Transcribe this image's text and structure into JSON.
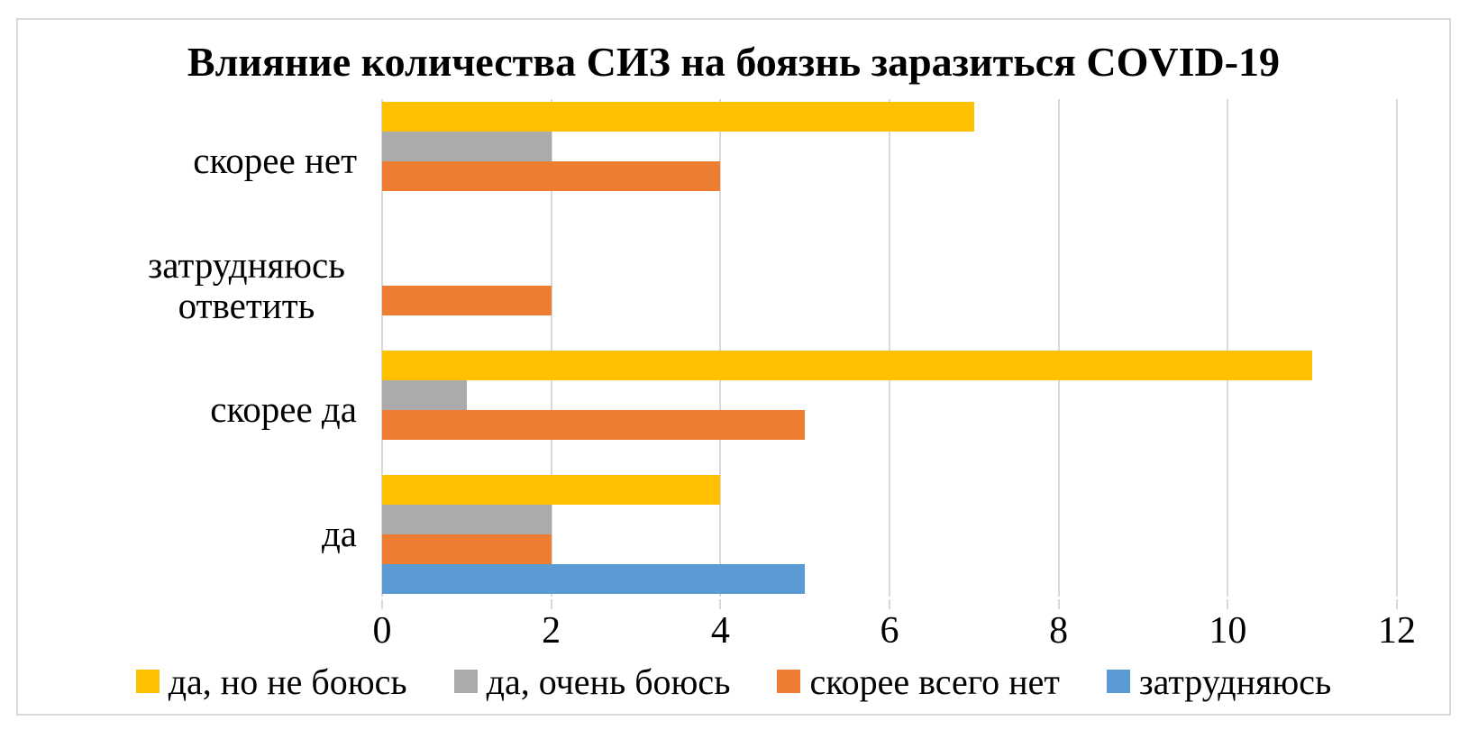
{
  "title": "Влияние количества СИЗ на боязнь заразиться COVID-19",
  "colors": {
    "background": "#FFFFFF",
    "frame_border": "#D9D9D9",
    "gridline": "#D9D9D9",
    "text": "#000000"
  },
  "chart_data": {
    "type": "bar",
    "orientation": "horizontal",
    "title": "Влияние количества СИЗ на боязнь заразиться COVID-19",
    "categories": [
      "скорее нет",
      "затрудняюсь ответить",
      "скорее да",
      "да"
    ],
    "series": [
      {
        "name": "да, но не боюсь",
        "color": "#FFC000",
        "values": [
          7,
          0,
          11,
          4
        ]
      },
      {
        "name": "да, очень боюсь",
        "color": "#ABABAB",
        "values": [
          2,
          0,
          1,
          2
        ]
      },
      {
        "name": "скорее всего нет",
        "color": "#ED7D31",
        "values": [
          4,
          2,
          5,
          2
        ]
      },
      {
        "name": "затрудняюсь",
        "color": "#5B9BD5",
        "values": [
          0,
          0,
          0,
          5
        ]
      }
    ],
    "xlim": [
      0,
      12
    ],
    "xticks": [
      0,
      2,
      4,
      6,
      8,
      10,
      12
    ],
    "grid": true,
    "legend_position": "bottom"
  }
}
